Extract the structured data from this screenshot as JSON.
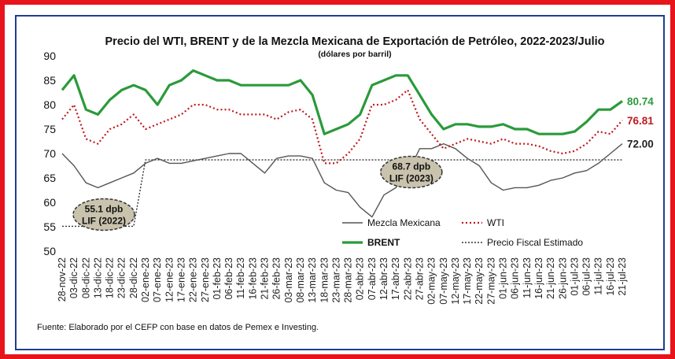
{
  "chart_data": {
    "type": "line",
    "title": "Precio del WTI, BRENT y de la Mezcla Mexicana de Exportación de Petróleo, 2022-2023/Julio",
    "subtitle": "(dólares por barril)",
    "ylim": [
      50,
      90
    ],
    "yticks": [
      "50",
      "55",
      "60",
      "65",
      "70",
      "75",
      "80",
      "85",
      "90"
    ],
    "x_labels": [
      "28-nov-22",
      "03-dic-22",
      "08-dic-22",
      "13-dic-22",
      "18-dic-22",
      "23-dic-22",
      "28-dic-22",
      "02-ene-23",
      "07-ene-23",
      "12-ene-23",
      "17-ene-23",
      "22-ene-23",
      "27-ene-23",
      "01-feb-23",
      "06-feb-23",
      "11-feb-23",
      "16-feb-23",
      "21-feb-23",
      "26-feb-23",
      "03-mar-23",
      "08-mar-23",
      "13-mar-23",
      "18-mar-23",
      "23-mar-23",
      "28-mar-23",
      "02-abr-23",
      "07-abr-23",
      "12-abr-23",
      "17-abr-23",
      "22-abr-23",
      "27-abr-23",
      "02-may-23",
      "07-may-23",
      "12-may-23",
      "17-may-23",
      "22-may-23",
      "27-may-23",
      "01-jun-23",
      "06-jun-23",
      "11-jun-23",
      "16-jun-23",
      "21-jun-23",
      "26-jun-23",
      "01-jul-23",
      "06-jul-23",
      "11-jul-23",
      "16-jul-23",
      "21-jul-23"
    ],
    "series": [
      {
        "name": "Mezcla Mexicana",
        "color": "#555555",
        "style": "solid",
        "values": [
          70,
          67.5,
          64,
          63,
          64,
          65,
          66,
          68,
          69,
          68,
          68,
          68.5,
          69,
          69.5,
          70,
          70,
          68,
          66,
          69,
          69.5,
          69.5,
          69,
          64,
          62.5,
          62,
          59,
          57,
          61.5,
          63,
          66,
          71,
          71,
          72,
          71,
          69,
          67.5,
          64,
          62.5,
          63,
          63,
          63.5,
          64.5,
          65,
          66,
          66.5,
          68,
          70,
          72
        ]
      },
      {
        "name": "WTI",
        "color": "#c0191f",
        "style": "dotted",
        "values": [
          77,
          80,
          73,
          72,
          75,
          76,
          78,
          75,
          76,
          77,
          78,
          80,
          80,
          79,
          79,
          78,
          78,
          78,
          77,
          78.5,
          79,
          77,
          68,
          68,
          70,
          73,
          80,
          80,
          81,
          83,
          77,
          74,
          71,
          72,
          73,
          72.5,
          72,
          73,
          72,
          72,
          71.5,
          70.5,
          70,
          70.5,
          72,
          74.5,
          74,
          76.81
        ]
      },
      {
        "name": "BRENT",
        "color": "#2a9a3a",
        "style": "solid",
        "values": [
          83,
          86,
          79,
          78,
          81,
          83,
          84,
          83,
          80,
          84,
          85,
          87,
          86,
          85,
          85,
          84,
          84,
          84,
          84,
          84,
          85,
          82,
          74,
          75,
          76,
          78,
          84,
          85,
          86,
          86,
          82,
          78,
          75,
          76,
          76,
          75.5,
          75.5,
          76,
          75,
          75,
          74,
          74,
          74,
          74.5,
          76.5,
          79,
          79,
          80.74
        ]
      },
      {
        "name": "Precio Fiscal Estimado",
        "color": "#333333",
        "style": "dashed",
        "values": [
          55.1,
          55.1,
          55.1,
          55.1,
          55.1,
          55.1,
          55.1,
          68.7,
          68.7,
          68.7,
          68.7,
          68.7,
          68.7,
          68.7,
          68.7,
          68.7,
          68.7,
          68.7,
          68.7,
          68.7,
          68.7,
          68.7,
          68.7,
          68.7,
          68.7,
          68.7,
          68.7,
          68.7,
          68.7,
          68.7,
          68.7,
          68.7,
          68.7,
          68.7,
          68.7,
          68.7,
          68.7,
          68.7,
          68.7,
          68.7,
          68.7,
          68.7,
          68.7,
          68.7,
          68.7,
          68.7,
          68.7,
          68.7
        ]
      }
    ],
    "end_labels": [
      {
        "text": "80.74",
        "color": "#2a9a3a"
      },
      {
        "text": "76.81",
        "color": "#c0191f"
      },
      {
        "text": "72.00",
        "color": "#222222"
      }
    ],
    "callouts": [
      {
        "line1": "55.1 dpb",
        "line2": "LIF (2022)"
      },
      {
        "line1": "68.7 dpb",
        "line2": "LIF (2023)"
      }
    ],
    "legend": [
      {
        "label": "Mezcla Mexicana",
        "color": "#555555",
        "style": "solid"
      },
      {
        "label": "WTI",
        "color": "#c0191f",
        "style": "dotted"
      },
      {
        "label": "BRENT",
        "color": "#2a9a3a",
        "style": "solid"
      },
      {
        "label": "Precio Fiscal Estimado",
        "color": "#333333",
        "style": "dashed"
      }
    ],
    "source": "Fuente: Elaborado por el CEFP con base en datos de Pemex e Investing."
  }
}
